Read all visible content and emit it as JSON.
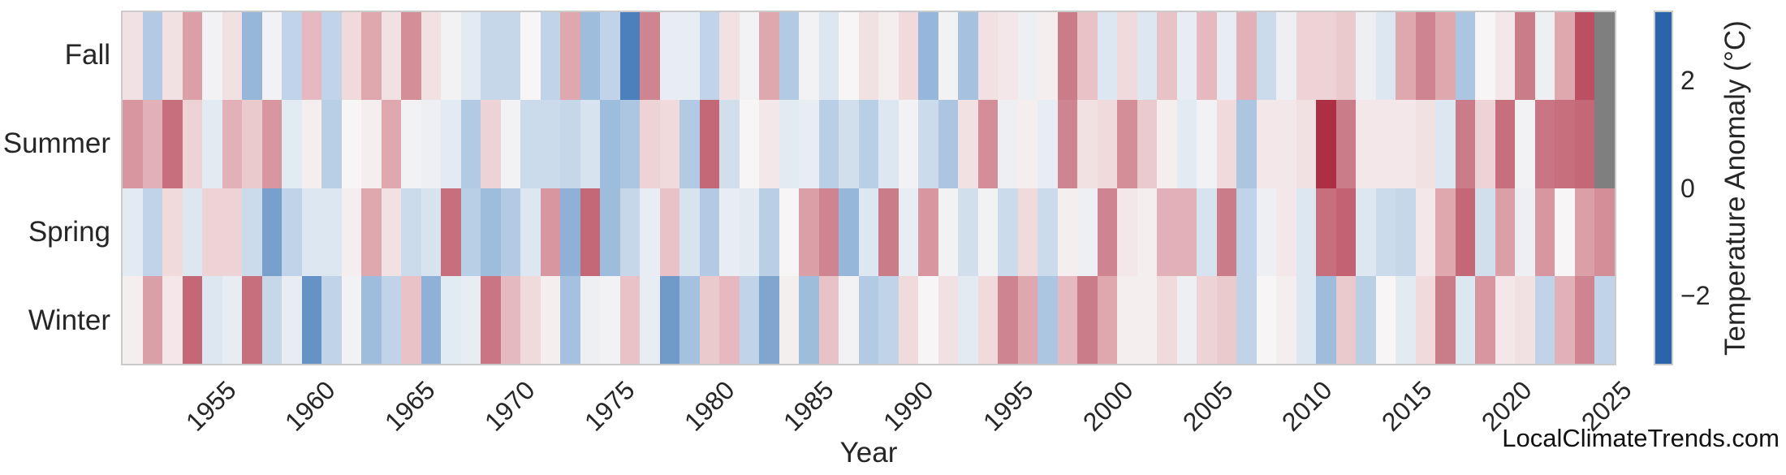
{
  "chart_data": {
    "type": "heatmap",
    "xlabel": "Year",
    "colorbar_label": "Temperature Anomaly (°C)",
    "rows": [
      "Fall",
      "Summer",
      "Spring",
      "Winter"
    ],
    "year_start": 1950,
    "year_end": 2024,
    "x_tick_years": [
      1955,
      1960,
      1965,
      1970,
      1975,
      1980,
      1985,
      1990,
      1995,
      2000,
      2005,
      2010,
      2015,
      2020,
      2025
    ],
    "colorbar_ticks": [
      {
        "label": "2",
        "value": 2
      },
      {
        "label": "0",
        "value": 0
      },
      {
        "label": "−2",
        "value": -2
      }
    ],
    "value_range": [
      -3.3,
      3.3
    ],
    "missing_color": "#7f7f7f",
    "colormap": [
      [
        -3.3,
        "#2a65ab"
      ],
      [
        -2.6,
        "#4379b8"
      ],
      [
        -2.0,
        "#78a0cd"
      ],
      [
        -1.5,
        "#9ebddd"
      ],
      [
        -1.0,
        "#c0d3e8"
      ],
      [
        -0.5,
        "#dde7f1"
      ],
      [
        0.0,
        "#f7f5f5"
      ],
      [
        0.5,
        "#eed3d6"
      ],
      [
        1.0,
        "#dfa8af"
      ],
      [
        1.5,
        "#cb7c89"
      ],
      [
        2.0,
        "#c05b6c"
      ],
      [
        2.6,
        "#b23a50"
      ],
      [
        3.3,
        "#a01327"
      ]
    ],
    "series": [
      {
        "name": "Fall",
        "values": [
          0.3,
          -1.2,
          0.3,
          1.1,
          -0.1,
          0.3,
          -1.6,
          -0.1,
          -1.0,
          0.8,
          -1.0,
          0.4,
          1.0,
          0.3,
          1.3,
          0.3,
          -0.1,
          -0.4,
          -0.9,
          -0.9,
          0.0,
          -1.0,
          1.0,
          -1.5,
          -1.0,
          -2.5,
          1.4,
          -0.3,
          -0.3,
          -1.0,
          0.3,
          -0.1,
          1.0,
          -1.2,
          -0.1,
          -0.5,
          0.0,
          0.3,
          0.1,
          0.4,
          -1.6,
          -0.1,
          -1.4,
          0.3,
          0.2,
          -0.2,
          0.1,
          1.5,
          0.7,
          -0.5,
          0.4,
          -0.5,
          0.7,
          -0.3,
          0.8,
          -0.3,
          0.9,
          -0.8,
          -0.2,
          0.5,
          0.5,
          0.6,
          -0.2,
          -0.5,
          1.0,
          1.4,
          1.0,
          -1.3,
          0.0,
          0.2,
          1.5,
          -0.2,
          1.0,
          2.2,
          null
        ]
      },
      {
        "name": "Summer",
        "values": [
          1.2,
          0.9,
          1.7,
          0.5,
          -0.4,
          0.9,
          0.6,
          1.2,
          -0.4,
          0.1,
          -1.1,
          0.0,
          0.1,
          1.0,
          -0.1,
          -0.2,
          -0.4,
          -1.2,
          0.5,
          -0.1,
          -0.8,
          -0.8,
          -0.9,
          -0.6,
          -1.5,
          -1.3,
          0.5,
          0.4,
          -1.2,
          1.8,
          -0.7,
          0.0,
          0.2,
          -0.4,
          -0.3,
          -1.1,
          -0.7,
          -1.1,
          -0.5,
          -0.1,
          -0.8,
          -1.3,
          0.3,
          1.3,
          -0.2,
          0.1,
          -0.3,
          1.4,
          0.3,
          0.4,
          1.3,
          0.6,
          0.1,
          -0.4,
          -0.1,
          0.4,
          -1.3,
          0.2,
          0.2,
          0.3,
          2.8,
          1.5,
          0.2,
          0.2,
          0.2,
          0.3,
          -0.5,
          1.5,
          0.5,
          1.7,
          -0.1,
          1.6,
          1.7,
          1.8,
          null
        ]
      },
      {
        "name": "Spring",
        "values": [
          -0.4,
          -1.0,
          0.4,
          -0.5,
          0.5,
          0.5,
          -0.8,
          -2.0,
          -1.0,
          -0.5,
          -0.5,
          0.1,
          1.0,
          0.3,
          -0.8,
          -0.6,
          1.7,
          -1.1,
          -1.5,
          -1.2,
          -0.5,
          1.2,
          -1.7,
          1.8,
          -1.5,
          -0.9,
          -0.3,
          0.7,
          -0.6,
          -1.2,
          -0.3,
          -0.4,
          -1.1,
          0.0,
          1.1,
          1.4,
          -1.6,
          -0.5,
          1.5,
          -0.3,
          1.2,
          -0.1,
          -0.7,
          -0.1,
          -0.8,
          0.4,
          -0.8,
          0.1,
          -0.2,
          1.4,
          0.2,
          0.1,
          0.9,
          0.9,
          -0.6,
          1.5,
          -1.0,
          -0.2,
          0.2,
          -0.5,
          1.7,
          1.9,
          -0.5,
          -0.8,
          -0.9,
          0.2,
          1.0,
          1.8,
          -0.7,
          1.1,
          -0.2,
          1.2,
          0.0,
          1.1,
          1.3
        ]
      },
      {
        "name": "Winter",
        "values": [
          0.1,
          1.1,
          0.2,
          1.8,
          -0.5,
          -0.3,
          1.7,
          -0.9,
          -0.3,
          -2.2,
          -1.0,
          -0.1,
          -1.5,
          -1.0,
          0.7,
          -1.7,
          -0.4,
          -0.3,
          1.6,
          0.8,
          0.4,
          0.1,
          -1.4,
          -0.2,
          -0.1,
          0.7,
          -0.3,
          -2.1,
          -1.4,
          0.6,
          0.8,
          -1.0,
          -1.9,
          0.1,
          -1.5,
          0.7,
          -0.1,
          -1.2,
          -1.0,
          0.4,
          0.0,
          0.3,
          -0.4,
          0.4,
          1.4,
          1.0,
          -1.3,
          0.8,
          1.5,
          1.0,
          0.1,
          0.1,
          0.4,
          -0.2,
          0.5,
          0.6,
          -1.0,
          0.0,
          0.1,
          -0.5,
          -1.5,
          0.6,
          -1.1,
          0.0,
          -0.4,
          0.4,
          1.5,
          -0.5,
          1.2,
          0.2,
          0.3,
          -1.0,
          0.9,
          1.4,
          -1.0
        ]
      }
    ]
  },
  "labels": {
    "xlabel": "Year",
    "watermark": "LocalClimateTrends.com",
    "colorbar_label": "Temperature Anomaly (°C)"
  }
}
